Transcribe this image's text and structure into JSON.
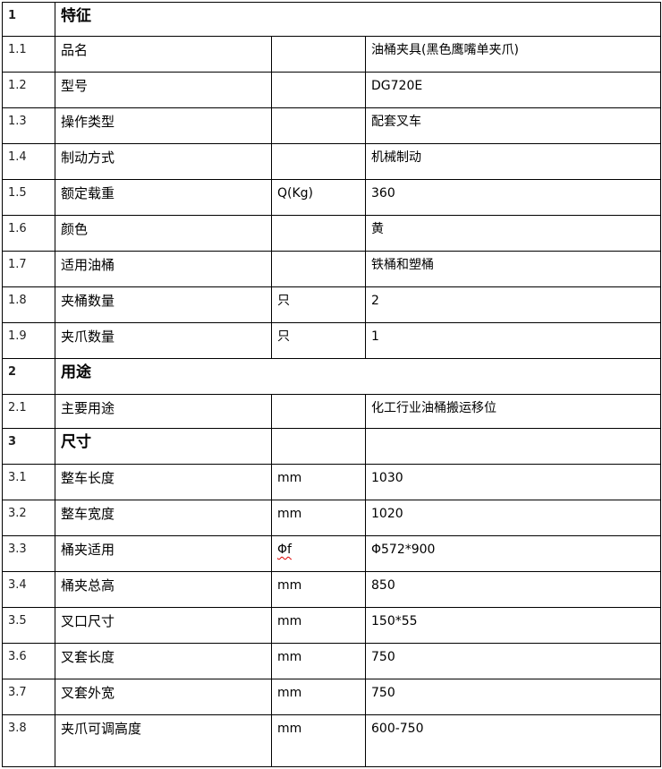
{
  "sections": [
    {
      "num": "1",
      "title": "特征",
      "merged": true,
      "rows": [
        {
          "num": "1.1",
          "name": "品名",
          "unit": "",
          "value": "油桶夹具(黑色鹰嘴单夹爪)"
        },
        {
          "num": "1.2",
          "name": "型号",
          "unit": "",
          "value": "DG720E"
        },
        {
          "num": "1.3",
          "name": "操作类型",
          "unit": "",
          "value": "配套叉车"
        },
        {
          "num": "1.4",
          "name": "制动方式",
          "unit": "",
          "value": "机械制动"
        },
        {
          "num": "1.5",
          "name": "额定载重",
          "unit": "Q(Kg)",
          "value": "360"
        },
        {
          "num": "1.6",
          "name": "颜色",
          "unit": "",
          "value": "黄"
        },
        {
          "num": "1.7",
          "name": "适用油桶",
          "unit": "",
          "value": "铁桶和塑桶"
        },
        {
          "num": "1.8",
          "name": "夹桶数量",
          "unit": "只",
          "value": "2"
        },
        {
          "num": "1.9",
          "name": "夹爪数量",
          "unit": "只",
          "value": "1"
        }
      ]
    },
    {
      "num": "2",
      "title": "用途",
      "merged": true,
      "rows": [
        {
          "num": "2.1",
          "name": "主要用途",
          "unit": "",
          "value": "化工行业油桶搬运移位"
        }
      ]
    },
    {
      "num": "3",
      "title": "尺寸",
      "merged": false,
      "rows": [
        {
          "num": "3.1",
          "name": "整车长度",
          "unit": "mm",
          "value": "1030"
        },
        {
          "num": "3.2",
          "name": "整车宽度",
          "unit": "mm",
          "value": "1020"
        },
        {
          "num": "3.3",
          "name": "桶夹适用",
          "unit": "Φf",
          "value": "Φ572*900"
        },
        {
          "num": "3.4",
          "name": "桶夹总高",
          "unit": "mm",
          "value": "850"
        },
        {
          "num": "3.5",
          "name": "叉口尺寸",
          "unit": "mm",
          "value": "150*55"
        },
        {
          "num": "3.6",
          "name": "叉套长度",
          "unit": "mm",
          "value": "750"
        },
        {
          "num": "3.7",
          "name": "叉套外宽",
          "unit": "mm",
          "value": "750"
        },
        {
          "num": "3.8",
          "name": "夹爪可调高度",
          "unit": "mm",
          "value": "600-750"
        }
      ]
    }
  ]
}
